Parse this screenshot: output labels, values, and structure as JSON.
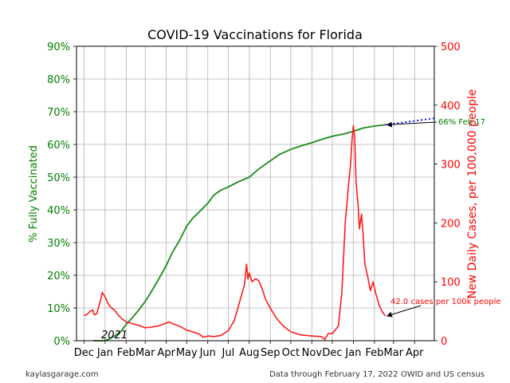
{
  "footer": {
    "left": "kaylasgarage.com",
    "right": "Data through February 17, 2022 OWID and US census"
  },
  "chart_data": {
    "type": "line",
    "title": "COVID-19 Vaccinations for Florida",
    "ylabel_left": "% Fully Vaccinated",
    "ylabel_right": "New Daily Cases, per 100,000 people",
    "x_ticks": [
      "Dec",
      "Jan",
      "Feb",
      "Mar",
      "Apr",
      "May",
      "Jun",
      "Jul",
      "Aug",
      "Sep",
      "Oct",
      "Nov",
      "Dec",
      "Jan",
      "Feb",
      "Mar",
      "Apr"
    ],
    "year_annotation": "2021",
    "ylim_left": [
      0,
      90
    ],
    "ylim_right": [
      0,
      500
    ],
    "y_ticks_left": [
      "0%",
      "10%",
      "20%",
      "30%",
      "40%",
      "50%",
      "60%",
      "70%",
      "80%",
      "90%"
    ],
    "y_ticks_right": [
      "0",
      "100",
      "200",
      "300",
      "400",
      "500"
    ],
    "grid": true,
    "colors": {
      "vaccinated": "#1a8a1a",
      "cases": "#ff1a1a",
      "projection": "#0000ff",
      "left_axis": "#008000",
      "right_axis": "#ff0000",
      "grid": "#b0b0b0"
    },
    "series": [
      {
        "name": "% Fully Vaccinated",
        "axis": "left",
        "values": [
          [
            "2020-12-15",
            0
          ],
          [
            "2020-12-28",
            0
          ],
          [
            "2021-01-05",
            0.3
          ],
          [
            "2021-01-15",
            1.5
          ],
          [
            "2021-01-25",
            3
          ],
          [
            "2021-02-01",
            5
          ],
          [
            "2021-02-10",
            7
          ],
          [
            "2021-02-20",
            9.5
          ],
          [
            "2021-03-01",
            12
          ],
          [
            "2021-03-10",
            15
          ],
          [
            "2021-03-20",
            18.5
          ],
          [
            "2021-04-01",
            23
          ],
          [
            "2021-04-10",
            27
          ],
          [
            "2021-04-20",
            30.5
          ],
          [
            "2021-05-01",
            35
          ],
          [
            "2021-05-10",
            37.5
          ],
          [
            "2021-05-20",
            39.5
          ],
          [
            "2021-06-01",
            42
          ],
          [
            "2021-06-10",
            44.5
          ],
          [
            "2021-06-20",
            46
          ],
          [
            "2021-07-01",
            47
          ],
          [
            "2021-07-15",
            48.5
          ],
          [
            "2021-08-01",
            50
          ],
          [
            "2021-08-15",
            52.5
          ],
          [
            "2021-09-01",
            55
          ],
          [
            "2021-09-15",
            57
          ],
          [
            "2021-10-01",
            58.5
          ],
          [
            "2021-10-15",
            59.5
          ],
          [
            "2021-11-01",
            60.5
          ],
          [
            "2021-11-15",
            61.5
          ],
          [
            "2021-12-01",
            62.5
          ],
          [
            "2021-12-20",
            63.3
          ],
          [
            "2022-01-01",
            64
          ],
          [
            "2022-01-15",
            65
          ],
          [
            "2022-02-01",
            65.6
          ],
          [
            "2022-02-17",
            66
          ]
        ]
      },
      {
        "name": "New Daily Cases, per 100,000 people",
        "axis": "right",
        "values": [
          [
            "2020-12-01",
            43
          ],
          [
            "2020-12-05",
            44
          ],
          [
            "2020-12-10",
            50
          ],
          [
            "2020-12-14",
            52
          ],
          [
            "2020-12-16",
            44
          ],
          [
            "2020-12-20",
            46
          ],
          [
            "2020-12-25",
            68
          ],
          [
            "2020-12-28",
            82
          ],
          [
            "2021-01-01",
            74
          ],
          [
            "2021-01-05",
            64
          ],
          [
            "2021-01-10",
            56
          ],
          [
            "2021-01-15",
            52
          ],
          [
            "2021-01-20",
            44
          ],
          [
            "2021-01-25",
            38
          ],
          [
            "2021-02-01",
            32
          ],
          [
            "2021-02-10",
            29
          ],
          [
            "2021-02-20",
            26
          ],
          [
            "2021-03-01",
            22
          ],
          [
            "2021-03-10",
            23
          ],
          [
            "2021-03-20",
            25
          ],
          [
            "2021-04-01",
            30
          ],
          [
            "2021-04-05",
            32
          ],
          [
            "2021-04-10",
            29
          ],
          [
            "2021-04-20",
            25
          ],
          [
            "2021-05-01",
            18
          ],
          [
            "2021-05-10",
            15
          ],
          [
            "2021-05-20",
            11
          ],
          [
            "2021-05-25",
            6
          ],
          [
            "2021-06-01",
            8
          ],
          [
            "2021-06-10",
            7
          ],
          [
            "2021-06-20",
            9
          ],
          [
            "2021-07-01",
            17
          ],
          [
            "2021-07-10",
            34
          ],
          [
            "2021-07-20",
            75
          ],
          [
            "2021-07-25",
            95
          ],
          [
            "2021-07-28",
            130
          ],
          [
            "2021-07-30",
            105
          ],
          [
            "2021-08-01",
            115
          ],
          [
            "2021-08-05",
            100
          ],
          [
            "2021-08-10",
            105
          ],
          [
            "2021-08-15",
            102
          ],
          [
            "2021-08-20",
            88
          ],
          [
            "2021-08-25",
            70
          ],
          [
            "2021-09-01",
            55
          ],
          [
            "2021-09-10",
            38
          ],
          [
            "2021-09-20",
            25
          ],
          [
            "2021-10-01",
            15
          ],
          [
            "2021-10-15",
            10
          ],
          [
            "2021-11-01",
            8
          ],
          [
            "2021-11-15",
            7
          ],
          [
            "2021-11-20",
            2
          ],
          [
            "2021-11-25",
            12
          ],
          [
            "2021-12-01",
            12
          ],
          [
            "2021-12-10",
            25
          ],
          [
            "2021-12-15",
            80
          ],
          [
            "2021-12-20",
            200
          ],
          [
            "2021-12-25",
            265
          ],
          [
            "2021-12-28",
            300
          ],
          [
            "2021-12-30",
            340
          ],
          [
            "2022-01-01",
            365
          ],
          [
            "2022-01-03",
            345
          ],
          [
            "2022-01-05",
            270
          ],
          [
            "2022-01-08",
            230
          ],
          [
            "2022-01-10",
            190
          ],
          [
            "2022-01-13",
            215
          ],
          [
            "2022-01-15",
            185
          ],
          [
            "2022-01-18",
            130
          ],
          [
            "2022-01-22",
            110
          ],
          [
            "2022-01-26",
            85
          ],
          [
            "2022-01-30",
            100
          ],
          [
            "2022-02-03",
            80
          ],
          [
            "2022-02-08",
            60
          ],
          [
            "2022-02-12",
            50
          ],
          [
            "2022-02-17",
            42
          ]
        ]
      },
      {
        "name": "Projection",
        "axis": "left",
        "values": [
          [
            "2022-02-17",
            66
          ],
          [
            "2022-04-30",
            68
          ]
        ]
      }
    ],
    "annotations": [
      {
        "text": "66% Feb 17",
        "color": "#008000",
        "arrow_to": [
          "2022-02-17",
          66
        ],
        "axis": "left"
      },
      {
        "text": "42.0 cases per 100k people",
        "color": "#ff0000",
        "arrow_to": [
          "2022-02-17",
          42
        ],
        "axis": "right"
      }
    ]
  }
}
